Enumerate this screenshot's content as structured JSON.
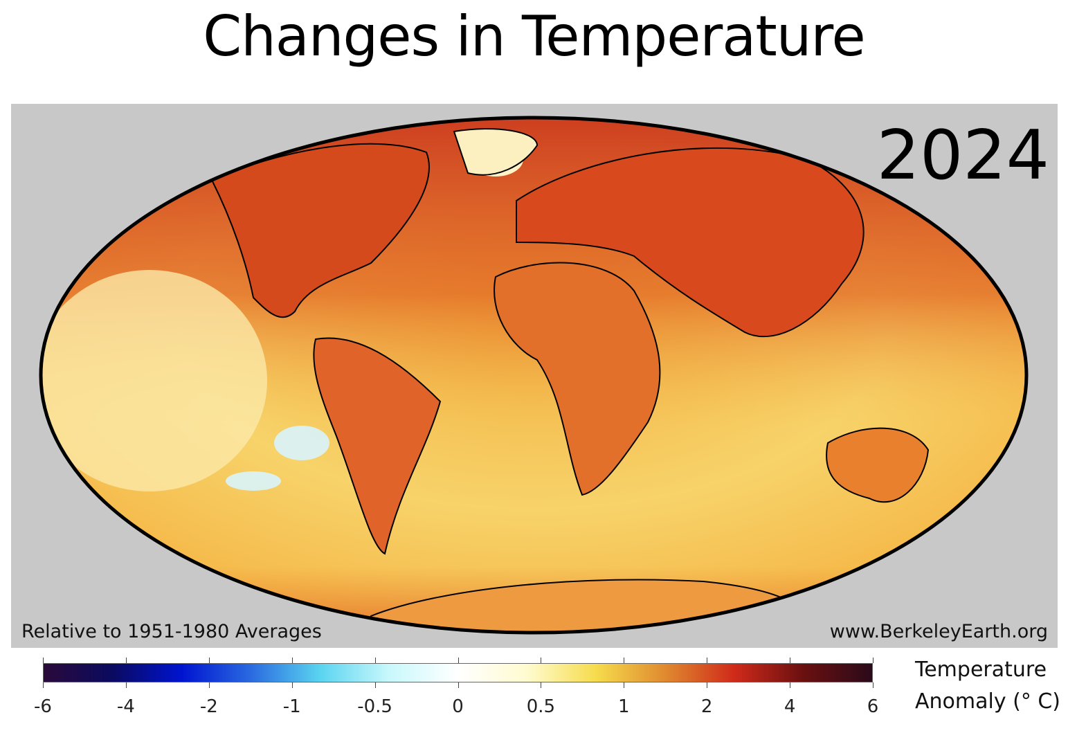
{
  "title": "Changes in Temperature",
  "map": {
    "year": "2024",
    "projection": "Mollweide",
    "note_left": "Relative to 1951-1980 Averages",
    "note_right": "www.BerkeleyEarth.org",
    "background_color": "#c8c8c8"
  },
  "colorbar": {
    "ticks": [
      "-6",
      "-4",
      "-2",
      "-1",
      "-0.5",
      "0",
      "0.5",
      "1",
      "2",
      "4",
      "6"
    ],
    "colors": [
      "#2a0a3a",
      "#0a0a60",
      "#0014d0",
      "#2a6ae0",
      "#5ad4f0",
      "#c8f8fc",
      "#ffffff",
      "#fffbd0",
      "#f6dc4c",
      "#e08a30",
      "#d02a1a",
      "#6a1010",
      "#2a0a1a"
    ],
    "label_line1": "Temperature",
    "label_line2": "Anomaly (° C)"
  }
}
